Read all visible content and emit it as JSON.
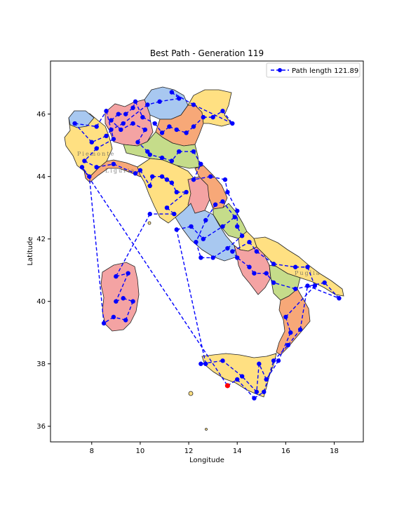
{
  "chart_data": {
    "type": "map-route",
    "title": "Best Path - Generation 119",
    "xlabel": "Longitude",
    "ylabel": "Latitude",
    "xlim": [
      6.3,
      19.2
    ],
    "ylim": [
      35.5,
      47.7
    ],
    "xticks": [
      8,
      10,
      12,
      14,
      16,
      18
    ],
    "yticks": [
      36,
      38,
      40,
      42,
      44,
      46
    ],
    "legend": {
      "label": "Path length 121.89",
      "placement": "top-right"
    },
    "region_colors": [
      "#a8c8f0",
      "#f4a3a3",
      "#ffe082",
      "#f7a878",
      "#c5dc8a"
    ],
    "map_labels": [
      "Piemonte",
      "Liguria",
      "Puglia"
    ],
    "route_color": "#0000ff",
    "start_color": "#ff0000",
    "start_point": [
      13.6,
      37.3
    ],
    "route": [
      [
        13.6,
        37.3
      ],
      [
        14.0,
        37.5
      ],
      [
        14.7,
        36.9
      ],
      [
        15.1,
        37.1
      ],
      [
        15.5,
        38.1
      ],
      [
        16.1,
        38.6
      ],
      [
        16.6,
        39.1
      ],
      [
        16.9,
        40.5
      ],
      [
        18.2,
        40.1
      ],
      [
        17.6,
        40.6
      ],
      [
        16.4,
        40.4
      ],
      [
        15.5,
        40.6
      ],
      [
        15.2,
        40.9
      ],
      [
        14.7,
        40.9
      ],
      [
        14.5,
        41.1
      ],
      [
        14.0,
        41.4
      ],
      [
        13.8,
        41.6
      ],
      [
        14.5,
        41.9
      ],
      [
        14.8,
        41.6
      ],
      [
        15.5,
        41.2
      ],
      [
        16.4,
        41.1
      ],
      [
        16.9,
        41.1
      ],
      [
        17.2,
        40.5
      ],
      [
        16.0,
        39.5
      ],
      [
        16.2,
        39.0
      ],
      [
        15.7,
        38.1
      ],
      [
        15.2,
        37.5
      ],
      [
        14.9,
        38.0
      ],
      [
        14.8,
        37.1
      ],
      [
        14.2,
        37.6
      ],
      [
        13.4,
        38.1
      ],
      [
        12.5,
        38.0
      ],
      [
        12.7,
        38.0
      ],
      [
        11.5,
        42.3
      ],
      [
        12.1,
        42.4
      ],
      [
        12.6,
        42.0
      ],
      [
        13.4,
        42.4
      ],
      [
        13.9,
        42.7
      ],
      [
        13.4,
        43.2
      ],
      [
        13.1,
        43.1
      ],
      [
        12.7,
        42.6
      ],
      [
        12.3,
        41.9
      ],
      [
        12.5,
        41.4
      ],
      [
        13.0,
        41.4
      ],
      [
        13.6,
        41.7
      ],
      [
        14.2,
        42.1
      ],
      [
        14.0,
        42.4
      ],
      [
        14.0,
        42.9
      ],
      [
        13.6,
        43.5
      ],
      [
        13.5,
        43.9
      ],
      [
        12.9,
        44.0
      ],
      [
        12.2,
        43.9
      ],
      [
        12.5,
        44.4
      ],
      [
        12.2,
        44.8
      ],
      [
        11.6,
        44.8
      ],
      [
        11.3,
        44.5
      ],
      [
        10.9,
        44.6
      ],
      [
        10.4,
        44.7
      ],
      [
        10.3,
        44.8
      ],
      [
        9.9,
        45.1
      ],
      [
        10.2,
        45.5
      ],
      [
        9.7,
        45.7
      ],
      [
        9.2,
        45.5
      ],
      [
        8.8,
        45.8
      ],
      [
        9.1,
        46.0
      ],
      [
        9.4,
        46.0
      ],
      [
        9.7,
        46.2
      ],
      [
        9.8,
        46.4
      ],
      [
        10.1,
        45.9
      ],
      [
        10.6,
        45.7
      ],
      [
        10.9,
        45.4
      ],
      [
        11.2,
        45.6
      ],
      [
        11.5,
        45.5
      ],
      [
        11.9,
        45.4
      ],
      [
        12.2,
        45.6
      ],
      [
        12.6,
        45.9
      ],
      [
        13.0,
        45.9
      ],
      [
        13.4,
        46.1
      ],
      [
        13.8,
        45.7
      ],
      [
        12.2,
        46.3
      ],
      [
        11.3,
        46.7
      ],
      [
        11.6,
        46.5
      ],
      [
        10.8,
        46.4
      ],
      [
        10.3,
        46.3
      ],
      [
        9.3,
        45.7
      ],
      [
        8.8,
        45.5
      ],
      [
        8.6,
        45.3
      ],
      [
        8.0,
        45.1
      ],
      [
        7.3,
        45.7
      ],
      [
        8.2,
        45.6
      ],
      [
        8.6,
        46.1
      ],
      [
        8.9,
        45.2
      ],
      [
        8.2,
        44.9
      ],
      [
        7.7,
        44.5
      ],
      [
        8.2,
        44.3
      ],
      [
        8.9,
        44.4
      ],
      [
        9.8,
        44.1
      ],
      [
        10.0,
        44.2
      ],
      [
        10.4,
        43.7
      ],
      [
        10.5,
        44.0
      ],
      [
        10.9,
        44.0
      ],
      [
        11.1,
        43.9
      ],
      [
        11.3,
        43.8
      ],
      [
        11.5,
        43.5
      ],
      [
        11.9,
        43.5
      ],
      [
        11.1,
        43.0
      ],
      [
        11.4,
        42.8
      ],
      [
        10.4,
        42.8
      ],
      [
        9.0,
        40.8
      ],
      [
        9.5,
        40.9
      ],
      [
        9.0,
        40.0
      ],
      [
        9.3,
        40.1
      ],
      [
        9.7,
        40.0
      ],
      [
        9.4,
        39.4
      ],
      [
        8.9,
        39.5
      ],
      [
        8.5,
        39.3
      ],
      [
        7.9,
        44.0
      ],
      [
        7.6,
        44.3
      ],
      [
        13.6,
        37.3
      ]
    ]
  }
}
